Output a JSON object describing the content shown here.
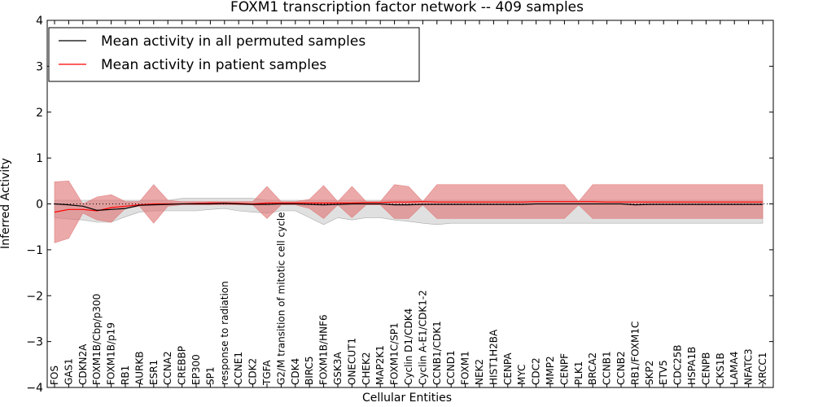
{
  "chart_data": {
    "type": "line",
    "title": "FOXM1 transcription factor network -- 409 samples",
    "xlabel": "Cellular Entities",
    "ylabel": "Inferred Activity",
    "ylim": [
      -4,
      4
    ],
    "yticks": [
      "−4",
      "−3",
      "−2",
      "−1",
      "0",
      "1",
      "2",
      "3",
      "4"
    ],
    "reference_line": 0,
    "legend_position": "top-left",
    "categories": [
      "FOS",
      "GAS1",
      "CDKN2A",
      "FOXM1B/Cbp/p300",
      "FOXM1B/p19",
      "RB1",
      "AURKB",
      "ESR1",
      "CCNA2",
      "CREBBP",
      "EP300",
      "SP1",
      "response to radiation",
      "CCNE1",
      "CDK2",
      "TGFA",
      "G2/M transition of mitotic cell cycle",
      "CDK4",
      "BIRC5",
      "FOXM1B/HNF6",
      "GSK3A",
      "ONECUT1",
      "CHEK2",
      "MAP2K1",
      "FOXM1C/SP1",
      "Cyclin D1/CDK4",
      "Cyclin A-E1/CDK1-2",
      "CCNB1/CDK1",
      "CCND1",
      "FOXM1",
      "NEK2",
      "HIST1H2BA",
      "CENPA",
      "MYC",
      "CDC2",
      "MMP2",
      "CENPF",
      "PLK1",
      "BRCA2",
      "CCNB1",
      "CCNB2",
      "RB1/FOXM1C",
      "SKP2",
      "ETV5",
      "CDC25B",
      "HSPA1B",
      "CENPB",
      "CKS1B",
      "LAMA4",
      "NFATC3",
      "XRCC1"
    ],
    "series": [
      {
        "name": "Mean activity in all permuted samples",
        "color": "#000000",
        "values": [
          0.0,
          -0.02,
          -0.05,
          -0.14,
          -0.12,
          -0.1,
          -0.03,
          -0.02,
          -0.01,
          0.0,
          0.0,
          0.0,
          0.01,
          0.0,
          -0.01,
          -0.01,
          0.0,
          0.0,
          -0.01,
          -0.02,
          -0.01,
          0.0,
          0.0,
          0.0,
          -0.02,
          -0.02,
          -0.01,
          -0.01,
          -0.01,
          -0.01,
          -0.01,
          -0.01,
          -0.01,
          -0.01,
          0.0,
          0.0,
          0.0,
          0.0,
          0.0,
          0.0,
          0.0,
          -0.02,
          -0.01,
          -0.01,
          -0.01,
          -0.01,
          -0.01,
          -0.01,
          -0.01,
          -0.01,
          -0.01
        ],
        "band_upper": [
          0.08,
          0.08,
          0.08,
          0.08,
          0.08,
          0.08,
          0.08,
          0.08,
          0.08,
          0.12,
          0.12,
          0.12,
          0.12,
          0.12,
          0.12,
          0.08,
          0.08,
          0.08,
          0.08,
          0.08,
          0.08,
          0.08,
          0.08,
          0.08,
          0.08,
          0.08,
          0.08,
          0.08,
          0.08,
          0.08,
          0.08,
          0.08,
          0.08,
          0.08,
          0.08,
          0.08,
          0.08,
          0.08,
          0.08,
          0.08,
          0.08,
          0.08,
          0.08,
          0.08,
          0.08,
          0.08,
          0.08,
          0.08,
          0.08,
          0.08,
          0.08
        ],
        "band_lower": [
          -0.3,
          -0.33,
          -0.35,
          -0.4,
          -0.4,
          -0.28,
          -0.18,
          -0.15,
          -0.15,
          -0.15,
          -0.15,
          -0.12,
          -0.1,
          -0.15,
          -0.18,
          -0.2,
          -0.15,
          -0.15,
          -0.3,
          -0.45,
          -0.3,
          -0.35,
          -0.3,
          -0.3,
          -0.35,
          -0.38,
          -0.42,
          -0.45,
          -0.42,
          -0.42,
          -0.42,
          -0.42,
          -0.42,
          -0.42,
          -0.42,
          -0.42,
          -0.42,
          -0.42,
          -0.42,
          -0.42,
          -0.42,
          -0.42,
          -0.42,
          -0.42,
          -0.42,
          -0.42,
          -0.42,
          -0.42,
          -0.42,
          -0.42,
          -0.42
        ]
      },
      {
        "name": "Mean activity in patient samples",
        "color": "#ff0000",
        "fill": "#e07070",
        "values": [
          -0.18,
          -0.12,
          -0.12,
          -0.15,
          -0.08,
          -0.05,
          -0.02,
          0.0,
          0.0,
          0.0,
          0.01,
          0.02,
          0.02,
          0.01,
          0.0,
          0.02,
          0.02,
          0.02,
          0.02,
          0.02,
          0.02,
          0.02,
          0.03,
          0.03,
          0.04,
          0.04,
          0.05,
          0.04,
          0.04,
          0.04,
          0.04,
          0.04,
          0.04,
          0.04,
          0.05,
          0.05,
          0.05,
          0.05,
          0.05,
          0.04,
          0.04,
          0.04,
          0.04,
          0.04,
          0.04,
          0.04,
          0.04,
          0.04,
          0.04,
          0.04,
          0.04
        ],
        "band_upper": [
          0.48,
          0.5,
          0.0,
          0.15,
          0.2,
          0.05,
          0.05,
          0.42,
          0.08,
          0.05,
          0.05,
          0.05,
          0.05,
          0.05,
          0.05,
          0.38,
          0.05,
          0.05,
          0.1,
          0.4,
          0.05,
          0.38,
          0.05,
          0.05,
          0.42,
          0.38,
          0.05,
          0.42,
          0.42,
          0.42,
          0.42,
          0.42,
          0.42,
          0.42,
          0.42,
          0.42,
          0.42,
          0.05,
          0.42,
          0.42,
          0.42,
          0.42,
          0.42,
          0.42,
          0.42,
          0.42,
          0.42,
          0.42,
          0.42,
          0.42,
          0.42
        ],
        "band_lower": [
          -0.85,
          -0.75,
          -0.2,
          -0.35,
          -0.4,
          -0.1,
          -0.05,
          -0.42,
          -0.05,
          -0.02,
          -0.02,
          -0.02,
          -0.02,
          -0.02,
          -0.02,
          -0.32,
          -0.02,
          -0.02,
          -0.1,
          -0.32,
          -0.02,
          -0.3,
          -0.02,
          -0.02,
          -0.32,
          -0.32,
          -0.02,
          -0.32,
          -0.32,
          -0.32,
          -0.32,
          -0.32,
          -0.32,
          -0.32,
          -0.32,
          -0.32,
          -0.32,
          -0.02,
          -0.32,
          -0.32,
          -0.32,
          -0.32,
          -0.32,
          -0.32,
          -0.32,
          -0.32,
          -0.32,
          -0.32,
          -0.32,
          -0.32,
          -0.32
        ]
      }
    ]
  }
}
